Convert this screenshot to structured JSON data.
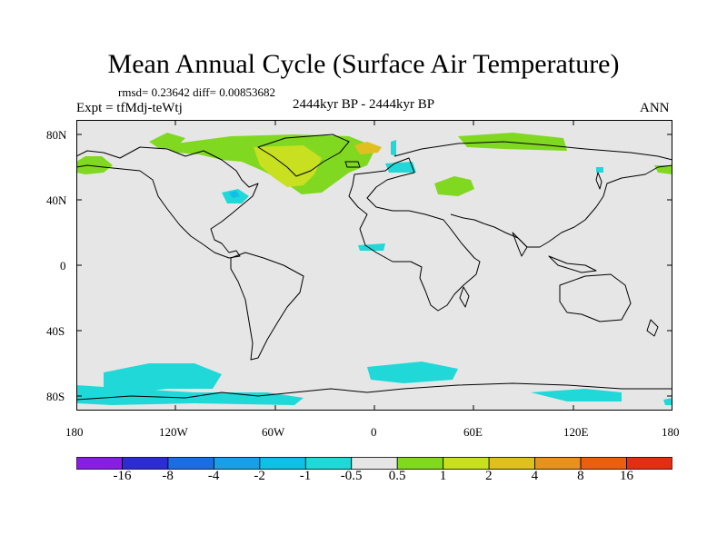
{
  "title": "Mean Annual Cycle (Surface Air Temperature)",
  "stats": "rmsd= 0.23642 diff= 0.00853682",
  "expt": "Expt = tfMdj-teWtj",
  "period": "2444kyr BP - 2444kyr BP",
  "season": "ANN",
  "lat_labels": [
    "80N",
    "40N",
    "0",
    "40S",
    "80S"
  ],
  "lon_labels": [
    "180",
    "120W",
    "60W",
    "0",
    "60E",
    "120E",
    "180"
  ],
  "colorbar": {
    "labels": [
      "-16",
      "-8",
      "-4",
      "-2",
      "-1",
      "-0.5",
      "0.5",
      "1",
      "2",
      "4",
      "8",
      "16"
    ],
    "colors": [
      "#8a1ee0",
      "#2c2cd0",
      "#1a6ee0",
      "#1a9ee8",
      "#10bfe8",
      "#20d8d8",
      "#e6e6e6",
      "#80d820",
      "#c8e020",
      "#e0c020",
      "#e89020",
      "#e86010",
      "#e03010"
    ]
  },
  "colors": {
    "land_background": "#e6e6e6",
    "coast": "#000000"
  }
}
